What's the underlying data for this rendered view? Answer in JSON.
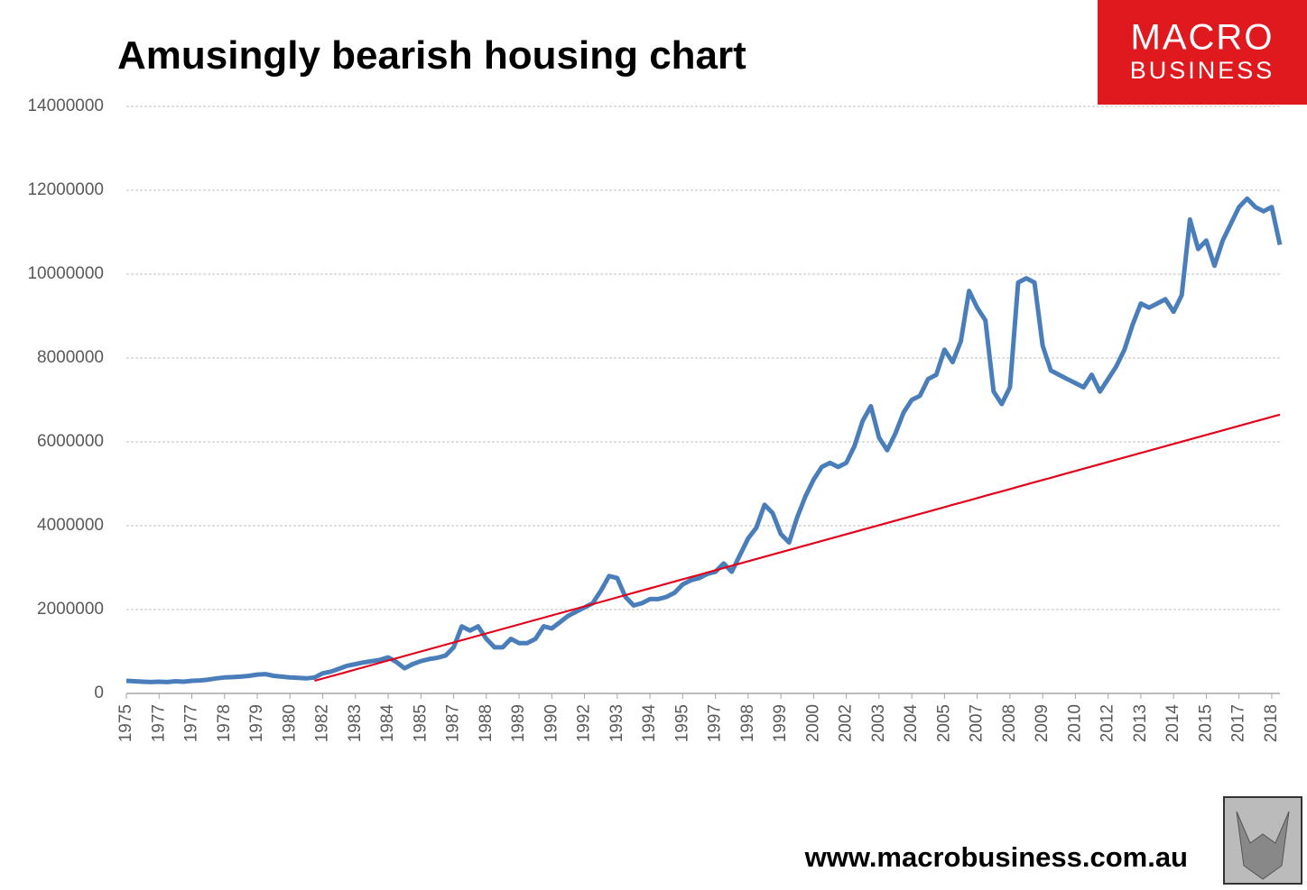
{
  "chart_data": {
    "type": "line",
    "title": "Amusingly bearish housing chart",
    "categories": [
      "1975",
      null,
      null,
      null,
      "1977",
      null,
      null,
      null,
      "1977",
      null,
      null,
      null,
      "1978",
      null,
      null,
      null,
      "1979",
      null,
      null,
      null,
      "1980",
      null,
      null,
      null,
      "1982",
      null,
      null,
      null,
      "1983",
      null,
      null,
      null,
      "1984",
      null,
      null,
      null,
      "1985",
      null,
      null,
      null,
      "1987",
      null,
      null,
      null,
      "1988",
      null,
      null,
      null,
      "1989",
      null,
      null,
      null,
      "1990",
      null,
      null,
      null,
      "1992",
      null,
      null,
      null,
      "1993",
      null,
      null,
      null,
      "1994",
      null,
      null,
      null,
      "1995",
      null,
      null,
      null,
      "1997",
      null,
      null,
      null,
      "1998",
      null,
      null,
      null,
      "1999",
      null,
      null,
      null,
      "2000",
      null,
      null,
      null,
      "2002",
      null,
      null,
      null,
      "2003",
      null,
      null,
      null,
      "2004",
      null,
      null,
      null,
      "2005",
      null,
      null,
      null,
      "2007",
      null,
      null,
      null,
      "2008",
      null,
      null,
      null,
      "2009",
      null,
      null,
      null,
      "2010",
      null,
      null,
      null,
      "2012",
      null,
      null,
      null,
      "2013",
      null,
      null,
      null,
      "2014",
      null,
      null,
      null,
      "2015",
      null,
      null,
      null,
      "2017",
      null,
      null,
      null,
      "2018",
      null
    ],
    "series": [
      {
        "color": "#4a7ebb",
        "values": [
          300000,
          290000,
          280000,
          270000,
          280000,
          270000,
          290000,
          280000,
          300000,
          310000,
          330000,
          360000,
          380000,
          390000,
          400000,
          420000,
          450000,
          460000,
          420000,
          400000,
          380000,
          370000,
          360000,
          380000,
          480000,
          520000,
          590000,
          660000,
          700000,
          740000,
          770000,
          800000,
          860000,
          750000,
          600000,
          700000,
          770000,
          820000,
          850000,
          900000,
          1100000,
          1600000,
          1500000,
          1600000,
          1300000,
          1100000,
          1100000,
          1300000,
          1200000,
          1200000,
          1300000,
          1600000,
          1550000,
          1700000,
          1850000,
          1950000,
          2050000,
          2150000,
          2450000,
          2800000,
          2750000,
          2300000,
          2100000,
          2150000,
          2250000,
          2250000,
          2300000,
          2400000,
          2600000,
          2700000,
          2750000,
          2850000,
          2900000,
          3100000,
          2900000,
          3300000,
          3700000,
          3950000,
          4500000,
          4300000,
          3800000,
          3600000,
          4200000,
          4700000,
          5100000,
          5400000,
          5500000,
          5400000,
          5500000,
          5900000,
          6500000,
          6850000,
          6100000,
          5800000,
          6200000,
          6700000,
          7000000,
          7100000,
          7500000,
          7600000,
          8200000,
          7900000,
          8400000,
          9600000,
          9200000,
          8900000,
          7200000,
          6900000,
          7300000,
          9800000,
          9900000,
          9800000,
          8300000,
          7700000,
          7600000,
          7500000,
          7400000,
          7300000,
          7600000,
          7200000,
          7500000,
          7800000,
          8200000,
          8800000,
          9300000,
          9200000,
          9300000,
          9400000,
          9100000,
          9500000,
          11300000,
          10600000,
          10800000,
          10200000,
          10800000,
          11200000,
          11600000,
          11800000,
          11600000,
          11500000,
          11600000,
          10700000
        ]
      },
      {
        "color": "#e3001b",
        "values": [
          null,
          null,
          null,
          null,
          null,
          null,
          null,
          null,
          null,
          null,
          null,
          null,
          null,
          null,
          null,
          null,
          null,
          null,
          null,
          null,
          null,
          null,
          null,
          300000,
          354000,
          408000,
          461000,
          515000,
          569000,
          623000,
          677000,
          731000,
          784000,
          838000,
          892000,
          946000,
          1000000,
          1053000,
          1107000,
          1161000,
          1215000,
          1269000,
          1322000,
          1376000,
          1430000,
          1484000,
          1538000,
          1591000,
          1645000,
          1699000,
          1753000,
          1807000,
          1861000,
          1914000,
          1968000,
          2022000,
          2076000,
          2130000,
          2183000,
          2237000,
          2291000,
          2345000,
          2399000,
          2453000,
          2506000,
          2560000,
          2614000,
          2668000,
          2722000,
          2775000,
          2829000,
          2883000,
          2937000,
          2991000,
          3045000,
          3098000,
          3152000,
          3206000,
          3260000,
          3314000,
          3367000,
          3421000,
          3475000,
          3529000,
          3583000,
          3637000,
          3690000,
          3744000,
          3798000,
          3852000,
          3906000,
          3959000,
          4013000,
          4067000,
          4121000,
          4175000,
          4229000,
          4282000,
          4336000,
          4390000,
          4444000,
          4498000,
          4551000,
          4605000,
          4659000,
          4713000,
          4767000,
          4820000,
          4874000,
          4928000,
          4982000,
          5036000,
          5090000,
          5143000,
          5197000,
          5251000,
          5305000,
          5359000,
          5412000,
          5466000,
          5520000,
          5574000,
          5628000,
          5682000,
          5735000,
          5789000,
          5843000,
          5897000,
          5951000,
          6004000,
          6058000,
          6112000,
          6166000,
          6220000,
          6274000,
          6327000,
          6381000,
          6435000,
          6489000,
          6543000,
          6596000,
          6650000
        ]
      }
    ],
    "ylim": [
      0,
      14000000
    ],
    "yticks": [
      0,
      2000000,
      4000000,
      6000000,
      8000000,
      10000000,
      12000000,
      14000000
    ],
    "grid": true
  },
  "logo": {
    "line1": "MACRO",
    "line2": "BUSINESS"
  },
  "footer": "www.macrobusiness.com.au"
}
